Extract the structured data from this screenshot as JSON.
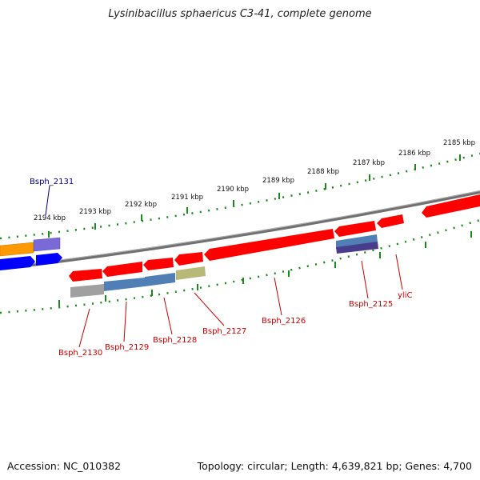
{
  "title": "Lysinibacillus sphaericus C3-41, complete genome",
  "footer": {
    "accession": "Accession: NC_010382",
    "summary": "Topology: circular; Length: 4,639,821 bp; Genes: 4,700"
  },
  "ruler": {
    "ticks": [
      "2194 kbp",
      "2193 kbp",
      "2192 kbp",
      "2191 kbp",
      "2190 kbp",
      "2189 kbp",
      "2188 kbp",
      "2187 kbp",
      "2186 kbp",
      "2185 kbp"
    ]
  },
  "genes": [
    {
      "name": "Bsph_2131",
      "color": "#00008b"
    },
    {
      "name": "Bsph_2130",
      "color": "#cc0000"
    },
    {
      "name": "Bsph_2129",
      "color": "#cc0000"
    },
    {
      "name": "Bsph_2128",
      "color": "#cc0000"
    },
    {
      "name": "Bsph_2127",
      "color": "#cc0000"
    },
    {
      "name": "Bsph_2126",
      "color": "#cc0000"
    },
    {
      "name": "Bsph_2125",
      "color": "#cc0000"
    },
    {
      "name": "yliC",
      "color": "#cc0000"
    }
  ],
  "colors": {
    "gene_red": "#ff0000",
    "gene_blue": "#0000ff",
    "gene_orange": "#ff9900",
    "gene_purple": "#7a6ad8",
    "backbone": "#808080",
    "tick_green": "#1a8a1a",
    "domain_steel": "#4f7fb5",
    "domain_olive": "#b8b878",
    "domain_gray": "#a0a0a0",
    "domain_navy": "#483d8b"
  }
}
